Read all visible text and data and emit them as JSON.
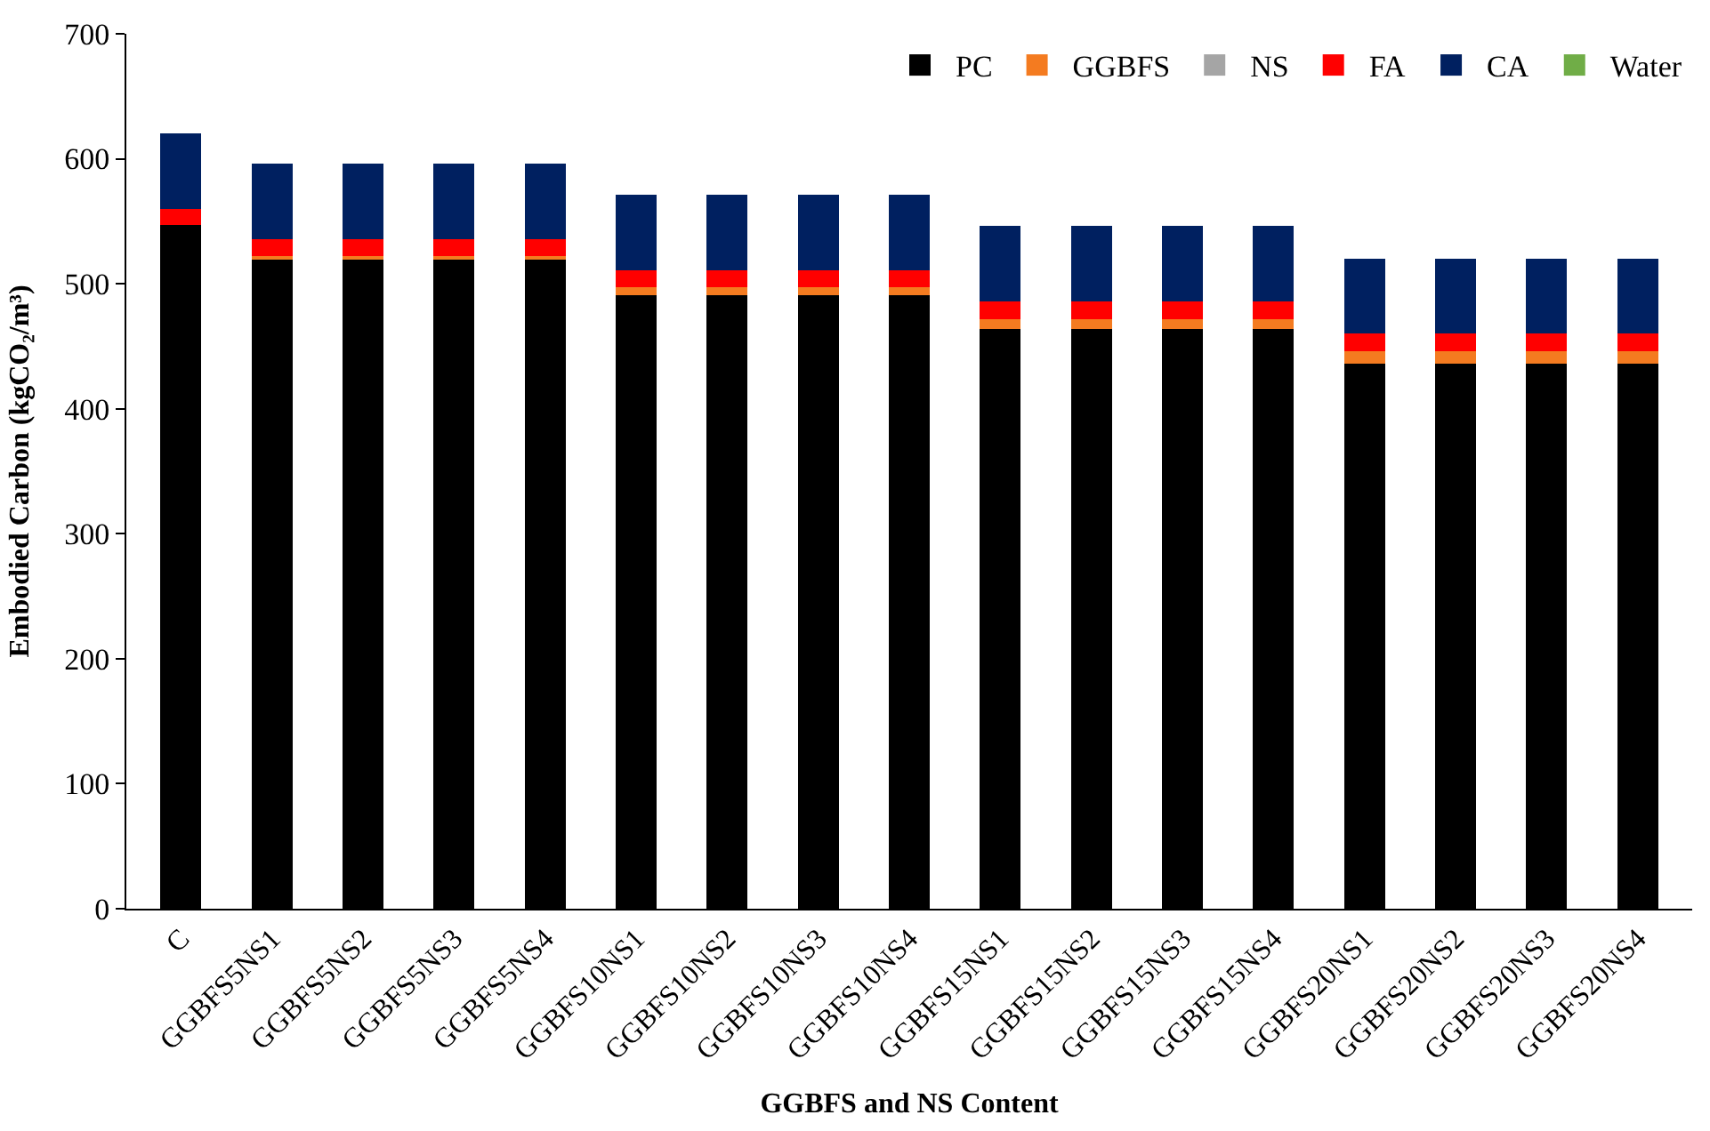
{
  "chart_data": {
    "type": "bar",
    "stacked": true,
    "categories": [
      "C",
      "GGBFS5NS1",
      "GGBFS5NS2",
      "GGBFS5NS3",
      "GGBFS5NS4",
      "GGBFS10NS1",
      "GGBFS10NS2",
      "GGBFS10NS3",
      "GGBFS10NS4",
      "GGBFS15NS1",
      "GGBFS15NS2",
      "GGBFS15NS3",
      "GGBFS15NS4",
      "GGBFS20NS1",
      "GGBFS20NS2",
      "GGBFS20NS3",
      "GGBFS20NS4"
    ],
    "series": [
      {
        "name": "PC",
        "color": "#000000",
        "values": [
          547,
          519,
          519,
          519,
          519,
          491,
          491,
          491,
          491,
          464,
          464,
          464,
          464,
          436,
          436,
          436,
          436
        ]
      },
      {
        "name": "GGBFS",
        "color": "#f47b20",
        "values": [
          null,
          3,
          3,
          3,
          3,
          6,
          6,
          6,
          6,
          8,
          8,
          8,
          8,
          10,
          10,
          10,
          10
        ]
      },
      {
        "name": "NS",
        "color": "#a5a5a5",
        "values": [
          null,
          null,
          null,
          null,
          null,
          null,
          null,
          null,
          null,
          null,
          null,
          null,
          null,
          null,
          null,
          null,
          null
        ]
      },
      {
        "name": "FA",
        "color": "#ff0000",
        "values": [
          13,
          14,
          14,
          14,
          14,
          14,
          14,
          14,
          14,
          14,
          14,
          14,
          14,
          14,
          14,
          14,
          14
        ]
      },
      {
        "name": "CA",
        "color": "#002060",
        "values": [
          60,
          60,
          60,
          60,
          60,
          60,
          60,
          60,
          60,
          60,
          60,
          60,
          60,
          60,
          60,
          60,
          60
        ]
      },
      {
        "name": "Water",
        "color": "#70ad47",
        "values": [
          null,
          null,
          null,
          null,
          null,
          null,
          null,
          null,
          null,
          null,
          null,
          null,
          null,
          null,
          null,
          null,
          null
        ]
      }
    ],
    "xlabel": "GGBFS and NS Content",
    "ylabel": "Embodied Carbon (kgCO₂/m³)",
    "ylim": [
      0,
      700
    ],
    "yticks": [
      0,
      100,
      200,
      300,
      400,
      500,
      600,
      700
    ],
    "grid": false,
    "legend": "top right"
  }
}
